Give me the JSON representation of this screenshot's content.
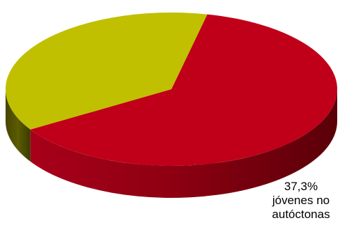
{
  "chart_data": {
    "type": "pie",
    "style": "3d",
    "title": "",
    "slices": [
      {
        "label": "",
        "value": 62.7,
        "color": "#c00018",
        "side_color": "#8e0010"
      },
      {
        "label": "jóvenes no autóctonas",
        "value": 37.3,
        "value_label": "37,3%",
        "label_lines": [
          "jóvenes no",
          "autóctonas"
        ],
        "color": "#c0c000",
        "side_color": "#5e5e00"
      }
    ],
    "legend": "none"
  }
}
